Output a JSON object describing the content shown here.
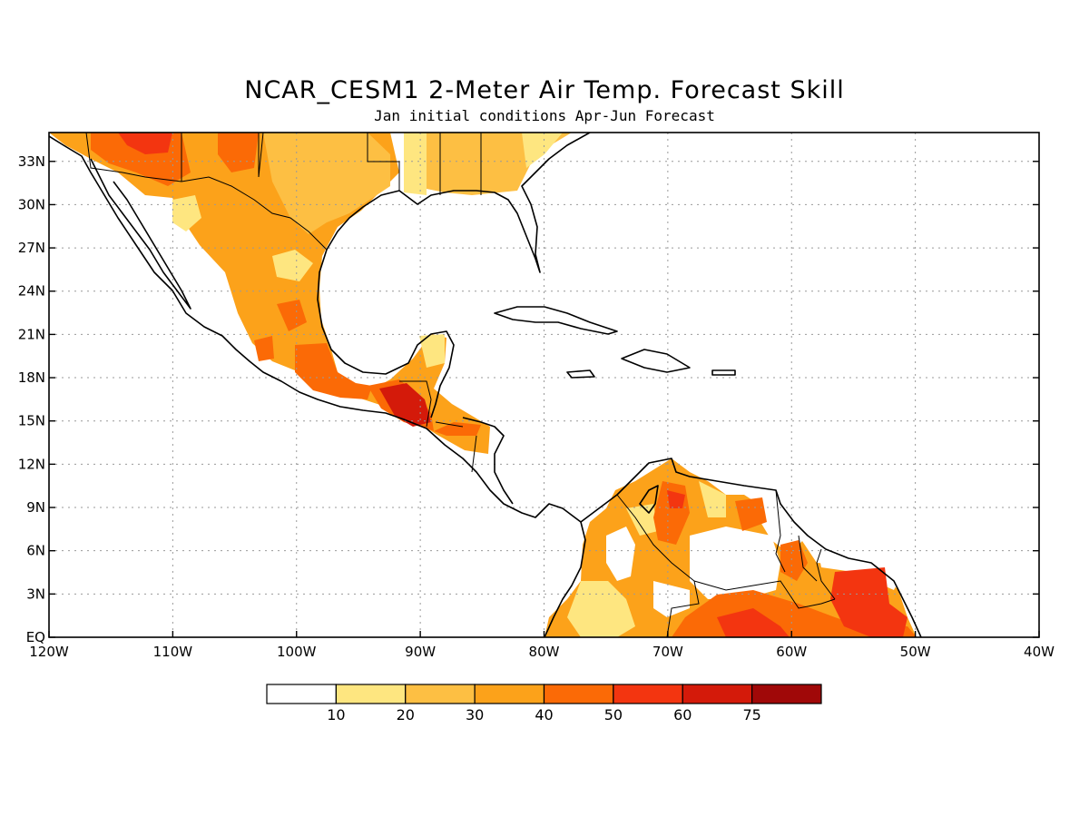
{
  "title": "NCAR_CESM1 2-Meter Air Temp. Forecast Skill",
  "subtitle": "Jan initial conditions  Apr-Jun Forecast",
  "map": {
    "lon_range": [
      -120,
      -40
    ],
    "lat_range": [
      0,
      35
    ],
    "x_ticks": [
      {
        "lon": -120,
        "label": "120W"
      },
      {
        "lon": -110,
        "label": "110W"
      },
      {
        "lon": -100,
        "label": "100W"
      },
      {
        "lon": -90,
        "label": "90W"
      },
      {
        "lon": -80,
        "label": "80W"
      },
      {
        "lon": -70,
        "label": "70W"
      },
      {
        "lon": -60,
        "label": "60W"
      },
      {
        "lon": -50,
        "label": "50W"
      },
      {
        "lon": -40,
        "label": "40W"
      }
    ],
    "y_ticks": [
      {
        "lat": 0,
        "label": "EQ"
      },
      {
        "lat": 3,
        "label": "3N"
      },
      {
        "lat": 6,
        "label": "6N"
      },
      {
        "lat": 9,
        "label": "9N"
      },
      {
        "lat": 12,
        "label": "12N"
      },
      {
        "lat": 15,
        "label": "15N"
      },
      {
        "lat": 18,
        "label": "18N"
      },
      {
        "lat": 21,
        "label": "21N"
      },
      {
        "lat": 24,
        "label": "24N"
      },
      {
        "lat": 27,
        "label": "27N"
      },
      {
        "lat": 30,
        "label": "30N"
      },
      {
        "lat": 33,
        "label": "33N"
      }
    ],
    "grid": "dotted"
  },
  "colorbar": {
    "bins": [
      {
        "color": "#ffffff"
      },
      {
        "color": "#fee680"
      },
      {
        "color": "#fdbf43"
      },
      {
        "color": "#fca21a"
      },
      {
        "color": "#fb6a06"
      },
      {
        "color": "#f33510"
      },
      {
        "color": "#d41a0a"
      },
      {
        "color": "#a00808"
      }
    ],
    "labels": [
      "10",
      "20",
      "30",
      "40",
      "50",
      "60",
      "75"
    ]
  }
}
